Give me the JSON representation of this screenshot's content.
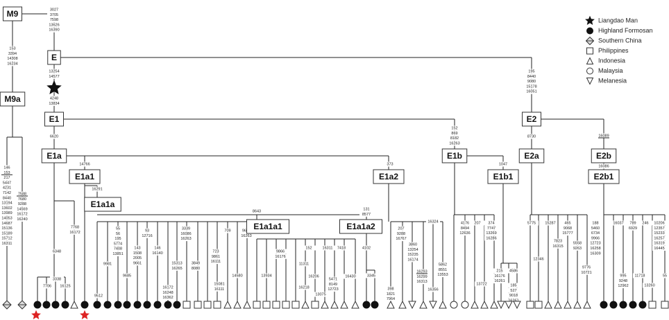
{
  "nodes": [
    {
      "label": "M9"
    },
    {
      "label": "E"
    },
    {
      "label": "M9a"
    },
    {
      "label": "E1"
    },
    {
      "label": "E2"
    },
    {
      "label": "E1a"
    },
    {
      "label": "E1a1"
    },
    {
      "label": "E1a2"
    },
    {
      "label": "E1b"
    },
    {
      "label": "E1b1"
    },
    {
      "label": "E2a"
    },
    {
      "label": "E2b"
    },
    {
      "label": "E2b1"
    },
    {
      "label": "E1a1a"
    },
    {
      "label": "E1a1a1"
    },
    {
      "label": "E1a1a2"
    }
  ],
  "legend": [
    {
      "label": "Liangdao Man"
    },
    {
      "label": "Highland Formosan"
    },
    {
      "label": "Southern China"
    },
    {
      "label": "Philippines"
    },
    {
      "label": "Indonesia"
    },
    {
      "label": "Malaysia"
    },
    {
      "label": "Melanesia"
    }
  ],
  "mutations": [
    {
      "lines": [
        "3027",
        "3705",
        "7598",
        "13626",
        "16390"
      ]
    },
    {
      "lines": [
        "153",
        "3394",
        "14308",
        "16234"
      ]
    },
    {
      "lines": [
        "13254",
        "14577"
      ]
    },
    {
      "lines": [
        "4248",
        "13834"
      ]
    },
    {
      "lines": [
        "6620"
      ]
    },
    {
      "lines": [
        "195",
        "8440",
        "9080",
        "15178",
        "16051"
      ]
    },
    {
      "lines": [
        "8730"
      ]
    },
    {
      "lines": [
        "16089"
      ]
    },
    {
      "lines": [
        "16086"
      ]
    },
    {
      "lines": [
        "14766"
      ]
    },
    {
      "lines": [
        "16291"
      ]
    },
    {
      "lines": [
        "373"
      ]
    },
    {
      "lines": [
        "152",
        "869",
        "8182",
        "16263"
      ]
    },
    {
      "lines": [
        "1047"
      ]
    },
    {
      "lines": [
        "8643"
      ]
    },
    {
      "lines": [
        "131",
        "8577"
      ]
    },
    {
      "lines": [
        "146",
        "153",
        "217",
        "5447",
        "4231",
        "7142",
        "8440",
        "13194",
        "13602",
        "13989",
        "14053",
        "14687",
        "15136",
        "15189",
        "15712",
        "16311"
      ]
    },
    {
      "lines": [
        "7588",
        "7680",
        "9288",
        "14569",
        "16172",
        "16240"
      ]
    },
    {
      "lines": [
        "6348"
      ]
    },
    {
      "lines": [
        "7768",
        "16172"
      ]
    },
    {
      "lines": [
        "3338"
      ]
    },
    {
      "lines": [
        "7706"
      ]
    },
    {
      "lines": [
        "16125"
      ]
    },
    {
      "lines": [
        "9512"
      ]
    },
    {
      "lines": [
        "9981"
      ]
    },
    {
      "lines": [
        "55",
        "56",
        "195",
        "5774",
        "7408",
        "13851"
      ]
    },
    {
      "lines": [
        "9685"
      ]
    },
    {
      "lines": [
        "143",
        "1508",
        "2005",
        "9661"
      ]
    },
    {
      "lines": [
        "93",
        "12716"
      ]
    },
    {
      "lines": [
        "146",
        "16140"
      ]
    },
    {
      "lines": [
        "16172",
        "16248",
        "16362"
      ]
    },
    {
      "lines": [
        "15313",
        "16265"
      ]
    },
    {
      "lines": [
        "3339",
        "16086",
        "16263"
      ]
    },
    {
      "lines": [
        "3849",
        "8080"
      ]
    },
    {
      "lines": [
        "723",
        "9861",
        "16111"
      ]
    },
    {
      "lines": [
        "709"
      ]
    },
    {
      "lines": [
        "15081",
        "16111"
      ]
    },
    {
      "lines": [
        "14580"
      ]
    },
    {
      "lines": [
        "9699",
        "16263"
      ]
    },
    {
      "lines": [
        "9866",
        "16176"
      ]
    },
    {
      "lines": [
        "13934"
      ]
    },
    {
      "lines": [
        "11311"
      ]
    },
    {
      "lines": [
        "152"
      ]
    },
    {
      "lines": [
        "16206"
      ]
    },
    {
      "lines": [
        "16311"
      ]
    },
    {
      "lines": [
        "7418"
      ]
    },
    {
      "lines": [
        "16218"
      ]
    },
    {
      "lines": [
        "5471",
        "8149",
        "12723"
      ]
    },
    {
      "lines": [
        "13075"
      ]
    },
    {
      "lines": [
        "16430"
      ]
    },
    {
      "lines": [
        "4102"
      ]
    },
    {
      "lines": [
        "3345"
      ]
    },
    {
      "lines": [
        "207",
        "9288",
        "16767"
      ]
    },
    {
      "lines": [
        "398",
        "1821",
        "7964"
      ]
    },
    {
      "lines": [
        "3860",
        "13254",
        "15235",
        "16174"
      ]
    },
    {
      "lines": [
        "16324"
      ]
    },
    {
      "lines": [
        "16293",
        "16299",
        "16313"
      ]
    },
    {
      "lines": [
        "5862",
        "8551",
        "13553"
      ]
    },
    {
      "lines": [
        "16356"
      ]
    },
    {
      "lines": [
        "4176",
        "8494",
        "12636"
      ]
    },
    {
      "lines": [
        "207"
      ]
    },
    {
      "lines": [
        "374",
        "7747",
        "13269",
        "16286"
      ]
    },
    {
      "lines": [
        "13722"
      ]
    },
    {
      "lines": [
        "215",
        "16176",
        "16261"
      ]
    },
    {
      "lines": [
        "4586"
      ]
    },
    {
      "lines": [
        "185",
        "527",
        "9018",
        "16261"
      ]
    },
    {
      "lines": [
        "5775"
      ]
    },
    {
      "lines": [
        "12346"
      ]
    },
    {
      "lines": [
        "15287"
      ]
    },
    {
      "lines": [
        "7823",
        "16315"
      ]
    },
    {
      "lines": [
        "465",
        "9068",
        "15777"
      ]
    },
    {
      "lines": [
        "5558",
        "9263"
      ]
    },
    {
      "lines": [
        "188",
        "5460",
        "6734",
        "9966",
        "12723",
        "16258",
        "16309"
      ]
    },
    {
      "lines": [
        "9776",
        "10721"
      ]
    },
    {
      "lines": [
        "16037"
      ]
    },
    {
      "lines": [
        "789",
        "6929"
      ]
    },
    {
      "lines": [
        "246"
      ]
    },
    {
      "lines": [
        "10206",
        "12357",
        "15233",
        "16257",
        "16319",
        "16445"
      ]
    },
    {
      "lines": [
        "995",
        "9248",
        "12962"
      ]
    },
    {
      "lines": [
        "11718"
      ]
    },
    {
      "lines": [
        "13260"
      ]
    },
    {
      "lines": [
        "55"
      ]
    }
  ]
}
